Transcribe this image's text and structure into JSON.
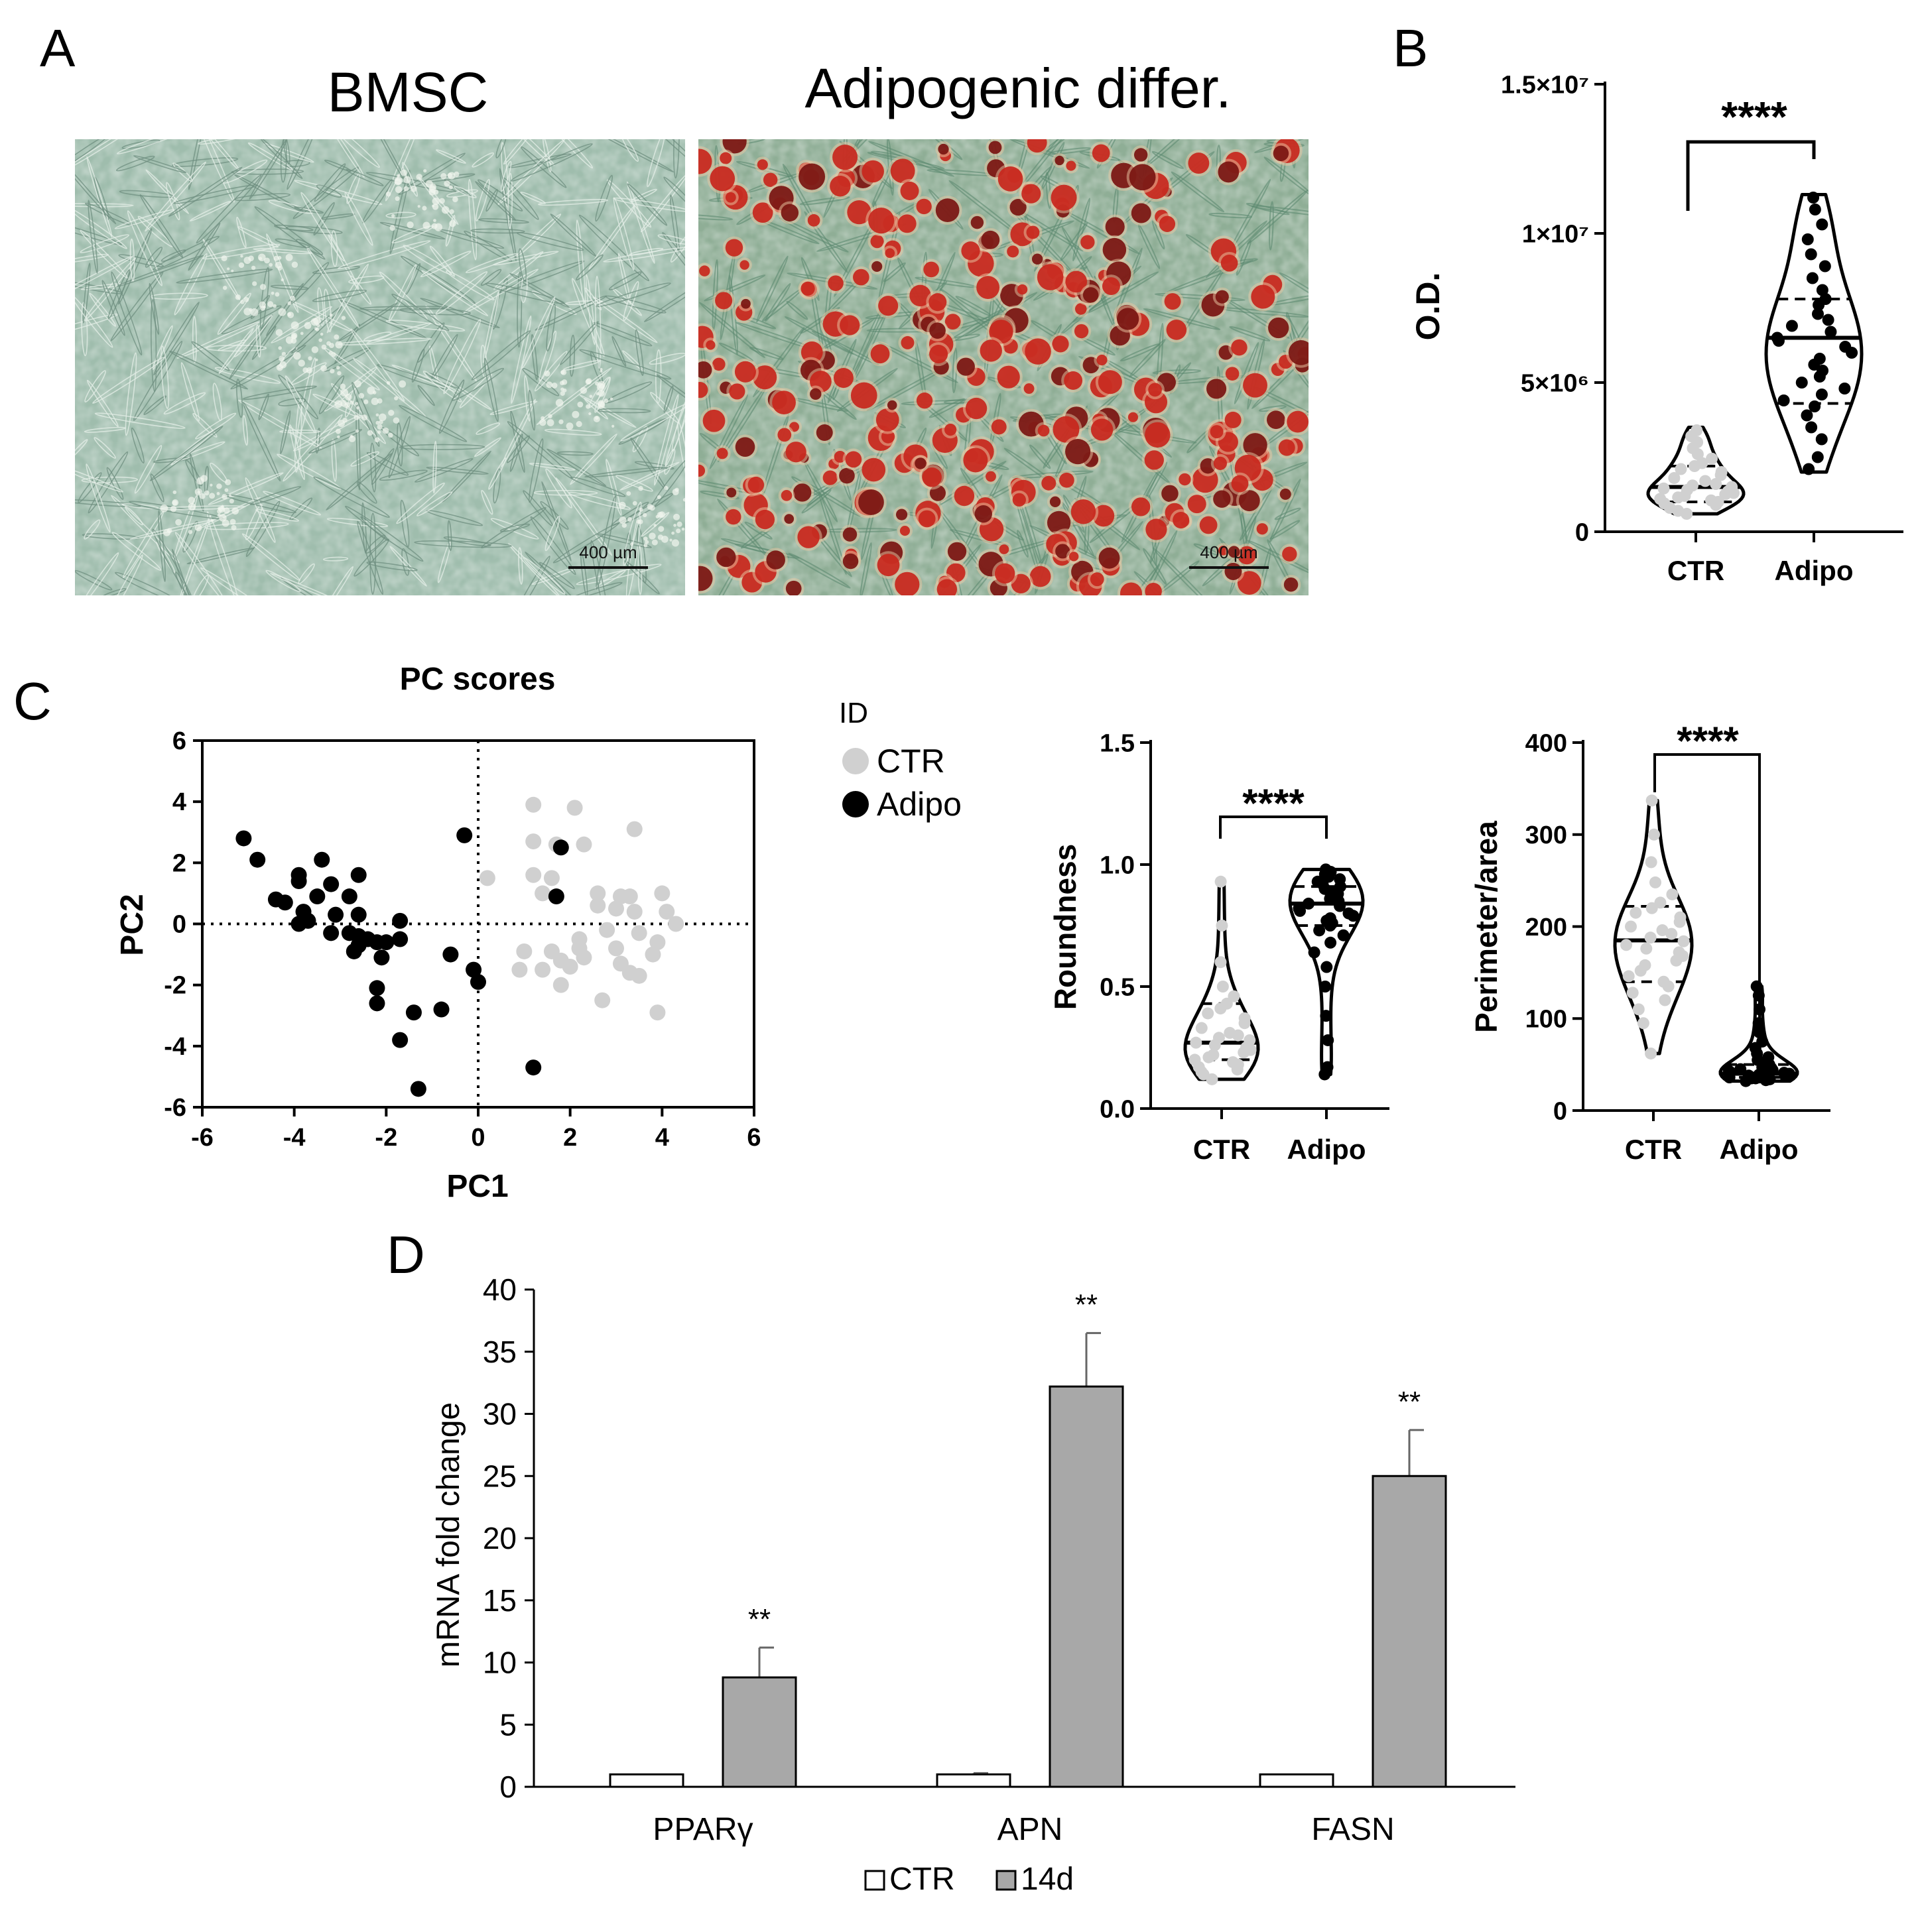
{
  "panels": {
    "a": {
      "letter": "A",
      "left_title": "BMSC",
      "right_title": "Adipogenic differ.",
      "scale_bar_label": "400 µm"
    },
    "b": {
      "letter": "B",
      "significance": "****"
    },
    "c": {
      "letter": "C",
      "roundness_significance": "****",
      "perimeter_significance": "****",
      "legend_title": "ID"
    },
    "d": {
      "letter": "D"
    }
  },
  "colors": {
    "ctr_points": "#d0d0d0",
    "adipo_points": "#000000",
    "bar_ctr": "#ffffff",
    "bar_14d": "#a8a8a8",
    "bmsc_background": "#9fbdad",
    "adipo_background": "#8fae96",
    "lipid_red": "#c8261c"
  },
  "chart_data": [
    {
      "panel": "B",
      "type": "violin",
      "categories": [
        "CTR",
        "Adipo"
      ],
      "ylabel": "O.D.",
      "ylim": [
        0,
        15000000
      ],
      "yticks": [
        "0",
        "5×10⁶",
        "1×10⁷",
        "1.5×10⁷"
      ],
      "series": [
        {
          "name": "CTR",
          "median": 1500000,
          "q1": 1000000,
          "q3": 2200000,
          "min": 600000,
          "max": 3500000,
          "values": [
            600000,
            700000,
            800000,
            900000,
            950000,
            1000000,
            1050000,
            1100000,
            1150000,
            1200000,
            1250000,
            1300000,
            1350000,
            1400000,
            1450000,
            1500000,
            1550000,
            1600000,
            1700000,
            1800000,
            1900000,
            2000000,
            2100000,
            2200000,
            2300000,
            2450000,
            2600000,
            2800000,
            3000000,
            3200000,
            3400000
          ]
        },
        {
          "name": "Adipo",
          "median": 6500000,
          "q1": 4300000,
          "q3": 7800000,
          "min": 2000000,
          "max": 11300000,
          "values": [
            2100000,
            2500000,
            3100000,
            3500000,
            3900000,
            4200000,
            4400000,
            4600000,
            4800000,
            5000000,
            5200000,
            5400000,
            5600000,
            5800000,
            6000000,
            6200000,
            6400000,
            6500000,
            6700000,
            6900000,
            7100000,
            7300000,
            7600000,
            7800000,
            8100000,
            8500000,
            8900000,
            9300000,
            9800000,
            10300000,
            10800000,
            11200000
          ]
        }
      ]
    },
    {
      "panel": "C-left",
      "type": "scatter",
      "title": "PC scores",
      "xlabel": "PC1",
      "ylabel": "PC2",
      "xlim": [
        -6,
        6
      ],
      "ylim": [
        -6,
        6
      ],
      "xticks": [
        -6,
        -4,
        -2,
        0,
        2,
        4,
        6
      ],
      "yticks": [
        -6,
        -4,
        -2,
        0,
        2,
        4,
        6
      ],
      "legend_title": "ID",
      "series": [
        {
          "name": "CTR",
          "points": [
            [
              1.2,
              3.9
            ],
            [
              2.1,
              3.8
            ],
            [
              3.4,
              3.1
            ],
            [
              1.2,
              2.7
            ],
            [
              1.7,
              2.6
            ],
            [
              2.3,
              2.6
            ],
            [
              0.2,
              1.5
            ],
            [
              1.2,
              1.6
            ],
            [
              1.6,
              1.5
            ],
            [
              1.4,
              1.0
            ],
            [
              2.6,
              1.0
            ],
            [
              3.1,
              0.9
            ],
            [
              3.3,
              0.9
            ],
            [
              4.0,
              1.0
            ],
            [
              2.6,
              0.6
            ],
            [
              3.0,
              0.5
            ],
            [
              3.4,
              0.4
            ],
            [
              4.1,
              0.4
            ],
            [
              4.3,
              0.0
            ],
            [
              2.2,
              -0.5
            ],
            [
              2.8,
              -0.2
            ],
            [
              3.5,
              -0.3
            ],
            [
              3.9,
              -0.6
            ],
            [
              1.0,
              -0.9
            ],
            [
              1.6,
              -0.9
            ],
            [
              2.2,
              -0.8
            ],
            [
              3.0,
              -0.8
            ],
            [
              3.8,
              -1.0
            ],
            [
              1.8,
              -1.2
            ],
            [
              2.3,
              -1.1
            ],
            [
              3.1,
              -1.3
            ],
            [
              0.9,
              -1.5
            ],
            [
              1.4,
              -1.5
            ],
            [
              2.0,
              -1.4
            ],
            [
              3.3,
              -1.6
            ],
            [
              3.5,
              -1.7
            ],
            [
              1.8,
              -2.0
            ],
            [
              2.7,
              -2.5
            ],
            [
              3.9,
              -2.9
            ]
          ]
        },
        {
          "name": "Adipo",
          "points": [
            [
              -5.1,
              2.8
            ],
            [
              -4.8,
              2.1
            ],
            [
              -3.4,
              2.1
            ],
            [
              -3.9,
              1.6
            ],
            [
              -3.9,
              1.4
            ],
            [
              -3.2,
              1.3
            ],
            [
              -2.6,
              1.6
            ],
            [
              -4.4,
              0.8
            ],
            [
              -4.2,
              0.7
            ],
            [
              -3.5,
              0.9
            ],
            [
              -2.8,
              0.9
            ],
            [
              -3.8,
              0.4
            ],
            [
              -3.1,
              0.3
            ],
            [
              -2.6,
              0.3
            ],
            [
              -3.9,
              0.0
            ],
            [
              -3.7,
              0.1
            ],
            [
              -1.7,
              0.1
            ],
            [
              -3.2,
              -0.3
            ],
            [
              -2.8,
              -0.3
            ],
            [
              -2.6,
              -0.4
            ],
            [
              -2.4,
              -0.5
            ],
            [
              -2.2,
              -0.6
            ],
            [
              -2.0,
              -0.6
            ],
            [
              -1.7,
              -0.5
            ],
            [
              -2.6,
              -0.7
            ],
            [
              -2.7,
              -0.9
            ],
            [
              -2.1,
              -1.1
            ],
            [
              -2.2,
              -2.1
            ],
            [
              -2.2,
              -2.6
            ],
            [
              -1.4,
              -2.9
            ],
            [
              -0.8,
              -2.8
            ],
            [
              -1.7,
              -3.8
            ],
            [
              -1.3,
              -5.4
            ],
            [
              -0.6,
              -1.0
            ],
            [
              -0.1,
              -1.5
            ],
            [
              0.0,
              -1.9
            ],
            [
              -0.3,
              2.9
            ],
            [
              1.8,
              2.5
            ],
            [
              1.7,
              0.9
            ],
            [
              1.2,
              -4.7
            ]
          ]
        }
      ]
    },
    {
      "panel": "C-mid",
      "type": "violin",
      "categories": [
        "CTR",
        "Adipo"
      ],
      "ylabel": "Roundness",
      "ylim": [
        0,
        1.5
      ],
      "yticks": [
        "0.0",
        "0.5",
        "1.0",
        "1.5"
      ],
      "series": [
        {
          "name": "CTR",
          "median": 0.27,
          "q1": 0.2,
          "q3": 0.43,
          "min": 0.12,
          "max": 0.93,
          "values": [
            0.12,
            0.14,
            0.15,
            0.16,
            0.17,
            0.18,
            0.19,
            0.2,
            0.21,
            0.22,
            0.23,
            0.24,
            0.25,
            0.26,
            0.27,
            0.28,
            0.29,
            0.3,
            0.31,
            0.33,
            0.35,
            0.37,
            0.39,
            0.41,
            0.43,
            0.46,
            0.5,
            0.6,
            0.75,
            0.93
          ]
        },
        {
          "name": "Adipo",
          "median": 0.84,
          "q1": 0.75,
          "q3": 0.91,
          "min": 0.14,
          "max": 0.98,
          "values": [
            0.14,
            0.17,
            0.28,
            0.38,
            0.5,
            0.58,
            0.64,
            0.68,
            0.71,
            0.73,
            0.75,
            0.76,
            0.77,
            0.78,
            0.79,
            0.8,
            0.81,
            0.82,
            0.83,
            0.84,
            0.85,
            0.86,
            0.87,
            0.88,
            0.89,
            0.9,
            0.91,
            0.92,
            0.93,
            0.94,
            0.95,
            0.96,
            0.97,
            0.98
          ]
        }
      ]
    },
    {
      "panel": "C-right",
      "type": "violin",
      "categories": [
        "CTR",
        "Adipo"
      ],
      "ylabel": "Perimeter/area",
      "ylim": [
        0,
        400
      ],
      "yticks": [
        "0",
        "100",
        "200",
        "300",
        "400"
      ],
      "series": [
        {
          "name": "CTR",
          "median": 185,
          "q1": 140,
          "q3": 222,
          "min": 62,
          "max": 337,
          "values": [
            62,
            95,
            110,
            120,
            128,
            135,
            140,
            146,
            152,
            158,
            163,
            168,
            172,
            176,
            180,
            184,
            188,
            192,
            196,
            200,
            205,
            210,
            215,
            220,
            226,
            235,
            248,
            270,
            300,
            337
          ]
        },
        {
          "name": "Adipo",
          "median": 40,
          "q1": 36,
          "q3": 50,
          "min": 32,
          "max": 135,
          "values": [
            32,
            33,
            34,
            35,
            35,
            36,
            36,
            37,
            37,
            38,
            38,
            39,
            39,
            40,
            40,
            41,
            42,
            43,
            44,
            45,
            46,
            47,
            48,
            50,
            52,
            55,
            58,
            62,
            68,
            75,
            85,
            95,
            110,
            125,
            135
          ]
        }
      ]
    },
    {
      "panel": "D",
      "type": "bar",
      "categories": [
        "PPARγ",
        "APN",
        "FASN"
      ],
      "ylabel": "mRNA fold change",
      "ylim": [
        0,
        40
      ],
      "yticks": [
        0,
        5,
        10,
        15,
        20,
        25,
        30,
        35,
        40
      ],
      "series": [
        {
          "name": "CTR",
          "values": [
            1,
            1,
            1
          ],
          "errors": [
            0,
            0.1,
            0
          ]
        },
        {
          "name": "14d",
          "values": [
            8.8,
            32.2,
            25.0
          ],
          "errors": [
            2.4,
            4.3,
            3.7
          ],
          "significance": [
            "**",
            "**",
            "**"
          ]
        }
      ]
    }
  ]
}
